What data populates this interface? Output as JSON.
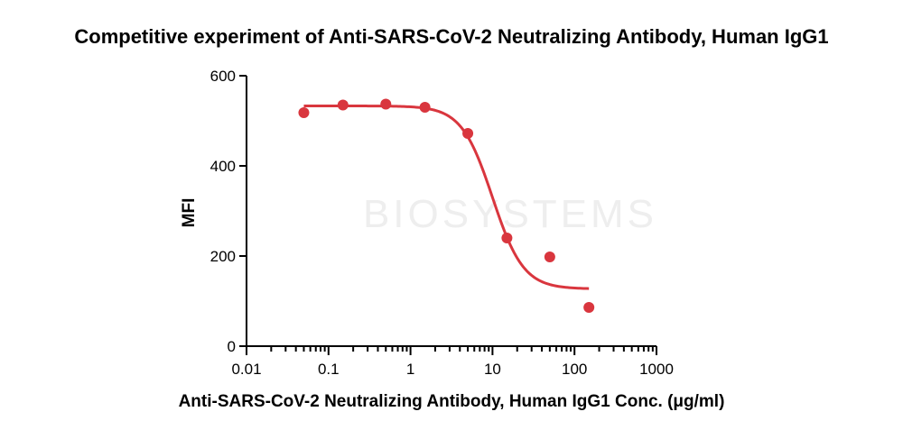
{
  "chart_data": {
    "type": "scatter",
    "title": "Competitive experiment of Anti-SARS-CoV-2 Neutralizing Antibody, Human IgG1",
    "xlabel": "Anti-SARS-CoV-2 Neutralizing Antibody, Human IgG1 Conc. (μg/ml)",
    "ylabel": "MFI",
    "xscale": "log",
    "xlim": [
      0.01,
      1000
    ],
    "ylim": [
      0,
      600
    ],
    "xticks": [
      "0.01",
      "0.1",
      "1",
      "10",
      "100",
      "1000"
    ],
    "yticks": [
      "0",
      "200",
      "400",
      "600"
    ],
    "grid": false,
    "legend": "none",
    "colors": {
      "series": "#d9363e"
    },
    "series": [
      {
        "x": [
          0.05,
          0.15,
          0.5,
          1.5,
          5,
          15,
          50,
          150
        ],
        "y": [
          518,
          535,
          537,
          530,
          472,
          240,
          198,
          86
        ]
      }
    ],
    "fit_curve": {
      "model": "4PL",
      "top": 533,
      "bottom": 127,
      "ec50": 10,
      "hill": 2.3
    },
    "watermark": "BIOSYSTEMS"
  }
}
